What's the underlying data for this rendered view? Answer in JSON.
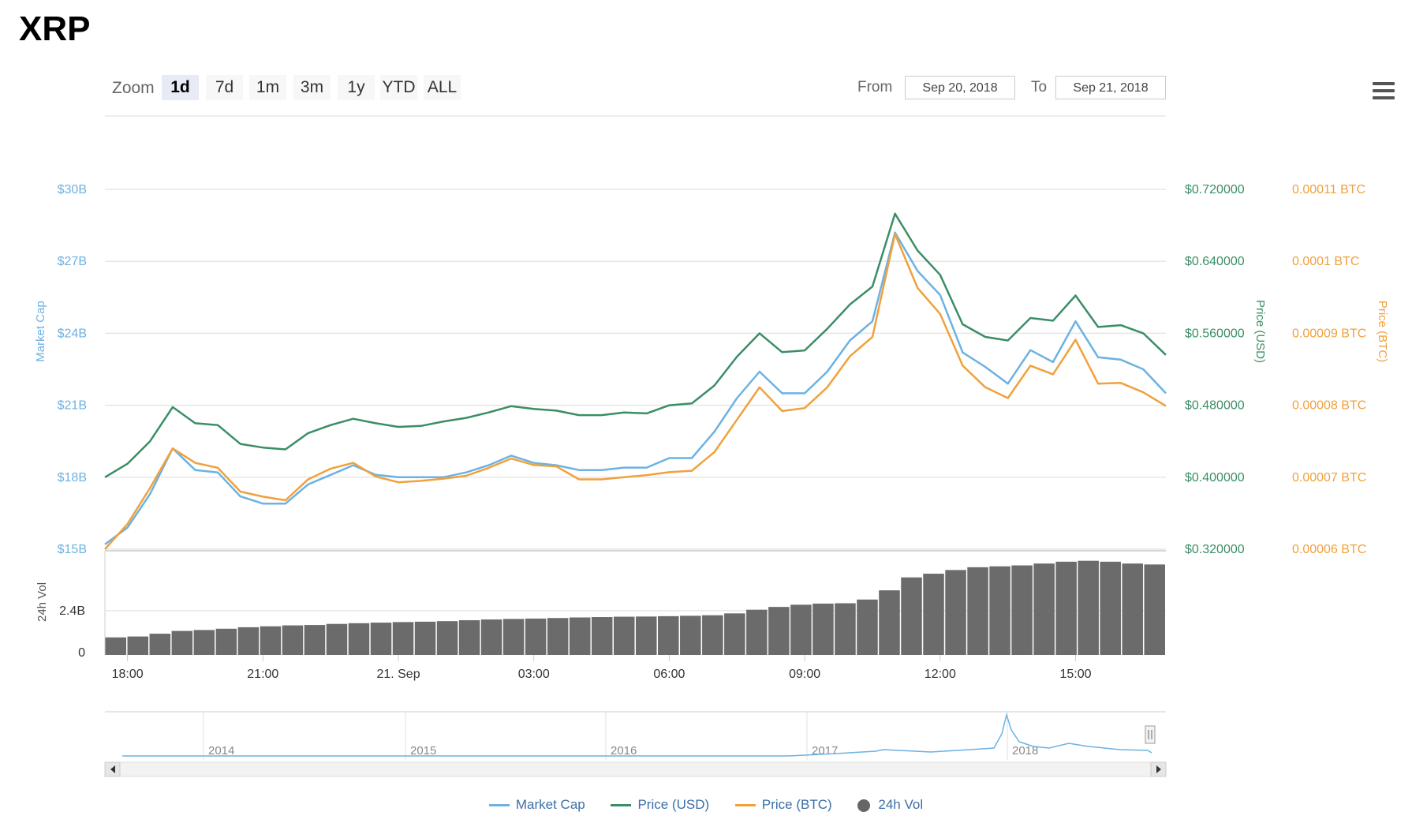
{
  "title": "XRP",
  "zoom": {
    "label": "Zoom",
    "buttons": [
      "1d",
      "7d",
      "1m",
      "3m",
      "1y",
      "YTD",
      "ALL"
    ],
    "active": "1d"
  },
  "range": {
    "from_label": "From",
    "from_value": "Sep 20, 2018",
    "to_label": "To",
    "to_value": "Sep 21, 2018"
  },
  "menu_icon": "hamburger-icon",
  "colors": {
    "market_cap": "#6cb2e2",
    "price_usd": "#3a8e65",
    "price_btc": "#f0a13c",
    "volume": "#6b6b6b"
  },
  "chart_data": {
    "type": "line",
    "x": [
      "17:00",
      "17:30",
      "18:00",
      "18:30",
      "19:00",
      "19:30",
      "20:00",
      "20:30",
      "21:00",
      "21:30",
      "22:00",
      "22:30",
      "23:00",
      "23:30",
      "00:00",
      "00:30",
      "01:00",
      "01:30",
      "02:00",
      "02:30",
      "03:00",
      "03:30",
      "04:00",
      "04:30",
      "05:00",
      "05:30",
      "06:00",
      "06:30",
      "07:00",
      "07:30",
      "08:00",
      "08:30",
      "09:00",
      "09:30",
      "10:00",
      "10:30",
      "11:00",
      "11:30",
      "12:00",
      "12:30",
      "13:00",
      "13:30",
      "14:00",
      "14:30",
      "15:00",
      "15:30",
      "16:00",
      "16:30"
    ],
    "x_ticks": [
      "18:00",
      "21:00",
      "21. Sep",
      "03:00",
      "06:00",
      "09:00",
      "12:00",
      "15:00"
    ],
    "series": [
      {
        "name": "Market Cap",
        "axis": "Market Cap",
        "values": [
          15.2,
          15.9,
          17.3,
          19.2,
          18.3,
          18.2,
          17.2,
          16.9,
          16.9,
          17.7,
          18.1,
          18.5,
          18.1,
          18.0,
          18.0,
          18.0,
          18.2,
          18.5,
          18.9,
          18.6,
          18.5,
          18.3,
          18.3,
          18.4,
          18.4,
          18.8,
          18.8,
          19.9,
          21.3,
          22.4,
          21.5,
          21.5,
          22.4,
          23.7,
          24.5,
          28.2,
          26.6,
          25.6,
          23.2,
          22.6,
          21.9,
          23.3,
          22.8,
          24.5,
          23.0,
          22.9,
          22.5,
          21.5
        ]
      },
      {
        "name": "Price (USD)",
        "axis": "Price (USD)",
        "values": [
          0.4,
          0.415,
          0.44,
          0.478,
          0.46,
          0.458,
          0.437,
          0.433,
          0.431,
          0.449,
          0.458,
          0.465,
          0.46,
          0.456,
          0.457,
          0.462,
          0.466,
          0.472,
          0.479,
          0.476,
          0.474,
          0.469,
          0.469,
          0.472,
          0.471,
          0.48,
          0.482,
          0.502,
          0.534,
          0.56,
          0.539,
          0.541,
          0.565,
          0.592,
          0.612,
          0.693,
          0.652,
          0.625,
          0.57,
          0.556,
          0.552,
          0.577,
          0.574,
          0.602,
          0.567,
          0.569,
          0.56,
          0.536
        ]
      },
      {
        "name": "Price (BTC)",
        "axis": "Price (BTC)",
        "values": [
          6e-05,
          6.35e-05,
          6.85e-05,
          7.4e-05,
          7.2e-05,
          7.13e-05,
          6.8e-05,
          6.73e-05,
          6.68e-05,
          6.97e-05,
          7.12e-05,
          7.2e-05,
          7.01e-05,
          6.93e-05,
          6.95e-05,
          6.98e-05,
          7.02e-05,
          7.13e-05,
          7.26e-05,
          7.17e-05,
          7.15e-05,
          6.97e-05,
          6.97e-05,
          7e-05,
          7.03e-05,
          7.07e-05,
          7.09e-05,
          7.35e-05,
          7.8e-05,
          8.25e-05,
          7.92e-05,
          7.96e-05,
          8.25e-05,
          8.68e-05,
          8.95e-05,
          0.0001038,
          9.63e-05,
          9.27e-05,
          8.55e-05,
          8.25e-05,
          8.1e-05,
          8.55e-05,
          8.43e-05,
          8.91e-05,
          8.3e-05,
          8.31e-05,
          8.18e-05,
          7.99e-05
        ]
      },
      {
        "name": "24h Vol",
        "axis": "24h Vol",
        "values": [
          0.95,
          1.0,
          1.15,
          1.3,
          1.35,
          1.42,
          1.5,
          1.55,
          1.6,
          1.62,
          1.68,
          1.72,
          1.75,
          1.78,
          1.8,
          1.83,
          1.88,
          1.92,
          1.95,
          1.97,
          2.0,
          2.03,
          2.05,
          2.07,
          2.08,
          2.1,
          2.12,
          2.15,
          2.25,
          2.45,
          2.6,
          2.72,
          2.78,
          2.8,
          3.0,
          3.5,
          4.2,
          4.4,
          4.6,
          4.75,
          4.8,
          4.85,
          4.95,
          5.05,
          5.1,
          5.05,
          4.95,
          4.9
        ]
      }
    ],
    "axes": {
      "market_cap": {
        "label": "Market Cap",
        "ticks": [
          "$15B",
          "$18B",
          "$21B",
          "$24B",
          "$27B",
          "$30B"
        ],
        "range": [
          15,
          30
        ]
      },
      "price_usd": {
        "label": "Price (USD)",
        "ticks": [
          "$0.320000",
          "$0.400000",
          "$0.480000",
          "$0.560000",
          "$0.640000",
          "$0.720000"
        ],
        "range": [
          0.32,
          0.72
        ]
      },
      "price_btc": {
        "label": "Price (BTC)",
        "ticks": [
          "0.00006 BTC",
          "0.00007 BTC",
          "0.00008 BTC",
          "0.00009 BTC",
          "0.0001 BTC",
          "0.00011 BTC"
        ],
        "range": [
          6e-05,
          0.00011
        ]
      },
      "volume": {
        "label": "24h Vol",
        "ticks": [
          "0",
          "2.4B"
        ],
        "range": [
          0,
          5.3
        ]
      }
    }
  },
  "navigator": {
    "years": [
      "2014",
      "2015",
      "2016",
      "2017",
      "2018"
    ]
  },
  "legend": [
    {
      "label": "Market Cap",
      "color": "#6cb2e2",
      "shape": "line"
    },
    {
      "label": "Price (USD)",
      "color": "#3a8e65",
      "shape": "line"
    },
    {
      "label": "Price (BTC)",
      "color": "#f0a13c",
      "shape": "line"
    },
    {
      "label": "24h Vol",
      "color": "#666666",
      "shape": "dot"
    }
  ]
}
